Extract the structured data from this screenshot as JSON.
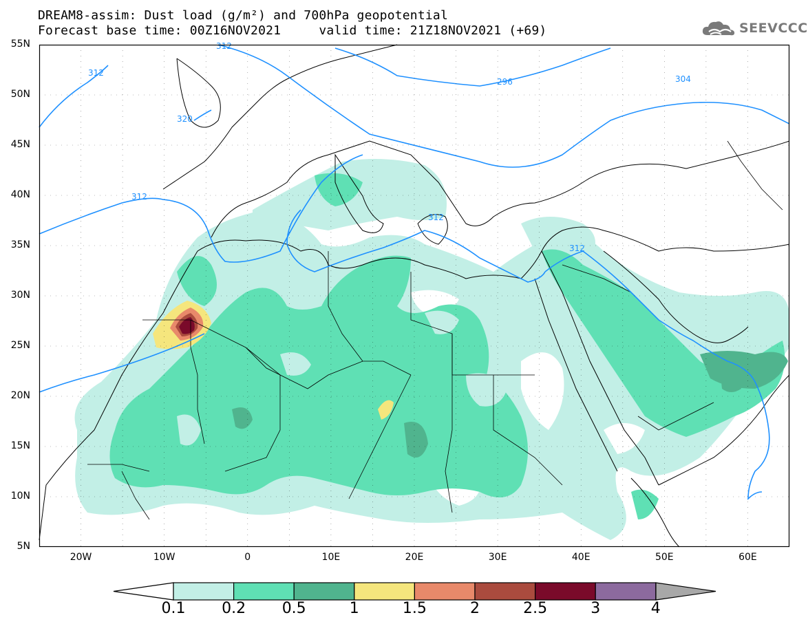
{
  "header": {
    "title_line1": "DREAM8-assim: Dust load (g/m²) and 700hPa geopotential",
    "title_line2": "Forecast base time: 00Z16NOV2021     valid time: 21Z18NOV2021 (+69)",
    "logo_text": "SEEVCCC"
  },
  "map": {
    "lon_range": [
      -25,
      65
    ],
    "lat_range": [
      5,
      55
    ],
    "lat_labels": [
      "55N",
      "50N",
      "45N",
      "40N",
      "35N",
      "30N",
      "25N",
      "20N",
      "15N",
      "10N",
      "5N"
    ],
    "lon_labels": [
      "20W",
      "10W",
      "0",
      "10E",
      "20E",
      "30E",
      "40E",
      "50E",
      "60E"
    ],
    "contour_labels": [
      "312",
      "312",
      "320",
      "312",
      "296",
      "304",
      "312",
      "312"
    ],
    "contour_color": "#1e90ff",
    "background": "#ffffff"
  },
  "colorbar": {
    "labels": [
      "0.1",
      "0.2",
      "0.5",
      "1",
      "1.5",
      "2",
      "2.5",
      "3",
      "4"
    ],
    "colors": [
      "#c2efe6",
      "#5fe0b4",
      "#50b48e",
      "#f5e67d",
      "#e8896a",
      "#aa4b3e",
      "#7a0a2a",
      "#8c6a9e",
      "#a8a8a8"
    ],
    "under_color": "#ffffff",
    "over_color": "#a8a8a8"
  }
}
